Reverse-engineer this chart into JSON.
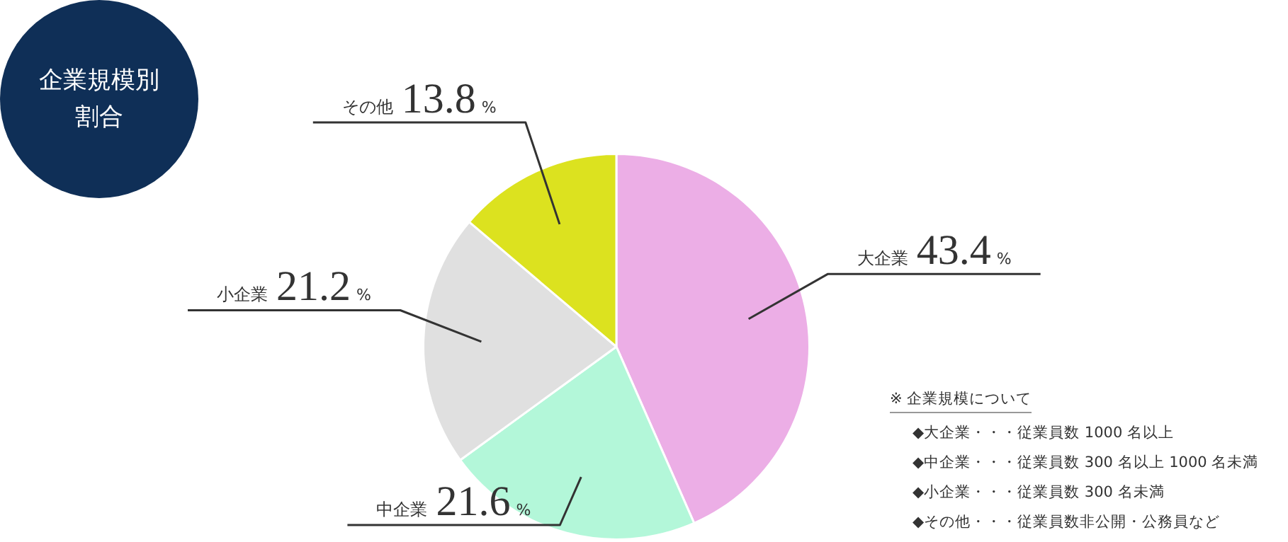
{
  "chart_data": {
    "type": "pie",
    "title": "企業規模別割合",
    "categories": [
      "大企業",
      "中企業",
      "小企業",
      "その他"
    ],
    "values": [
      43.4,
      21.6,
      21.2,
      13.8
    ],
    "colors": [
      "#ecaee6",
      "#b3f7d9",
      "#e0e0e0",
      "#dce21f"
    ],
    "value_labels": [
      "43.4%",
      "21.6%",
      "21.2%",
      "13.8%"
    ],
    "legend": false,
    "annotations": [
      "※ 企業規模について",
      "◆大企業・・・従業員数 1000 名以上",
      "◆中企業・・・従業員数 300 名以上 1000 名未満",
      "◆小企業・・・従業員数 300 名未満",
      "◆その他・・・従業員数非公開・公務員など"
    ]
  }
}
